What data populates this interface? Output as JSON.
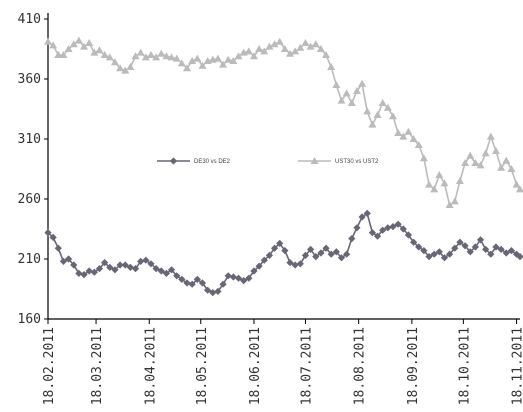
{
  "chart_data": {
    "type": "line",
    "title": "",
    "xlabel": "",
    "ylabel": "",
    "ylim": [
      160,
      410
    ],
    "y_ticks": [
      "160",
      "210",
      "260",
      "310",
      "360",
      "410"
    ],
    "x_ticks": [
      "18.02.2011",
      "18.03.2011",
      "18.04.2011",
      "18.05.2011",
      "18.06.2011",
      "18.07.2011",
      "18.08.2011",
      "18.09.2011",
      "18.10.2011",
      "18.11.2011"
    ],
    "x_range": [
      "2011-02-18",
      "2011-11-20"
    ],
    "grid": false,
    "legend_position": "center",
    "series": [
      {
        "name": "DE30 vs DE2",
        "color": "#666677",
        "marker": "diamond",
        "points": [
          [
            "2011-02-18",
            232
          ],
          [
            "2011-02-21",
            228
          ],
          [
            "2011-02-24",
            219
          ],
          [
            "2011-02-27",
            208
          ],
          [
            "2011-03-02",
            210
          ],
          [
            "2011-03-05",
            205
          ],
          [
            "2011-03-08",
            198
          ],
          [
            "2011-03-11",
            197
          ],
          [
            "2011-03-14",
            200
          ],
          [
            "2011-03-17",
            199
          ],
          [
            "2011-03-20",
            202
          ],
          [
            "2011-03-23",
            207
          ],
          [
            "2011-03-26",
            203
          ],
          [
            "2011-03-29",
            201
          ],
          [
            "2011-04-01",
            205
          ],
          [
            "2011-04-04",
            205
          ],
          [
            "2011-04-07",
            203
          ],
          [
            "2011-04-10",
            202
          ],
          [
            "2011-04-13",
            208
          ],
          [
            "2011-04-16",
            209
          ],
          [
            "2011-04-19",
            206
          ],
          [
            "2011-04-22",
            202
          ],
          [
            "2011-04-25",
            200
          ],
          [
            "2011-04-28",
            198
          ],
          [
            "2011-05-01",
            201
          ],
          [
            "2011-05-04",
            196
          ],
          [
            "2011-05-07",
            193
          ],
          [
            "2011-05-10",
            190
          ],
          [
            "2011-05-13",
            189
          ],
          [
            "2011-05-16",
            193
          ],
          [
            "2011-05-19",
            190
          ],
          [
            "2011-05-22",
            184
          ],
          [
            "2011-05-25",
            182
          ],
          [
            "2011-05-28",
            183
          ],
          [
            "2011-05-31",
            189
          ],
          [
            "2011-06-03",
            196
          ],
          [
            "2011-06-06",
            195
          ],
          [
            "2011-06-09",
            194
          ],
          [
            "2011-06-12",
            192
          ],
          [
            "2011-06-15",
            194
          ],
          [
            "2011-06-18",
            200
          ],
          [
            "2011-06-21",
            204
          ],
          [
            "2011-06-24",
            209
          ],
          [
            "2011-06-27",
            213
          ],
          [
            "2011-06-30",
            219
          ],
          [
            "2011-07-03",
            223
          ],
          [
            "2011-07-06",
            217
          ],
          [
            "2011-07-09",
            207
          ],
          [
            "2011-07-12",
            205
          ],
          [
            "2011-07-15",
            206
          ],
          [
            "2011-07-18",
            213
          ],
          [
            "2011-07-21",
            218
          ],
          [
            "2011-07-24",
            212
          ],
          [
            "2011-07-27",
            215
          ],
          [
            "2011-07-30",
            219
          ],
          [
            "2011-08-02",
            214
          ],
          [
            "2011-08-05",
            216
          ],
          [
            "2011-08-08",
            211
          ],
          [
            "2011-08-11",
            214
          ],
          [
            "2011-08-14",
            227
          ],
          [
            "2011-08-17",
            236
          ],
          [
            "2011-08-20",
            245
          ],
          [
            "2011-08-23",
            248
          ],
          [
            "2011-08-26",
            232
          ],
          [
            "2011-08-29",
            229
          ],
          [
            "2011-09-01",
            234
          ],
          [
            "2011-09-04",
            236
          ],
          [
            "2011-09-07",
            237
          ],
          [
            "2011-09-10",
            239
          ],
          [
            "2011-09-13",
            235
          ],
          [
            "2011-09-16",
            230
          ],
          [
            "2011-09-19",
            224
          ],
          [
            "2011-09-22",
            220
          ],
          [
            "2011-09-25",
            217
          ],
          [
            "2011-09-28",
            212
          ],
          [
            "2011-10-01",
            214
          ],
          [
            "2011-10-04",
            216
          ],
          [
            "2011-10-07",
            211
          ],
          [
            "2011-10-10",
            214
          ],
          [
            "2011-10-13",
            219
          ],
          [
            "2011-10-16",
            224
          ],
          [
            "2011-10-19",
            221
          ],
          [
            "2011-10-22",
            216
          ],
          [
            "2011-10-25",
            220
          ],
          [
            "2011-10-28",
            226
          ],
          [
            "2011-10-31",
            218
          ],
          [
            "2011-11-03",
            214
          ],
          [
            "2011-11-06",
            220
          ],
          [
            "2011-11-09",
            218
          ],
          [
            "2011-11-12",
            215
          ],
          [
            "2011-11-15",
            217
          ],
          [
            "2011-11-18",
            214
          ],
          [
            "2011-11-20",
            212
          ]
        ]
      },
      {
        "name": "UST30 vs UST2",
        "color": "#bbbbbb",
        "marker": "triangle",
        "points": [
          [
            "2011-02-18",
            391
          ],
          [
            "2011-02-21",
            388
          ],
          [
            "2011-02-24",
            380
          ],
          [
            "2011-02-27",
            380
          ],
          [
            "2011-03-02",
            385
          ],
          [
            "2011-03-05",
            389
          ],
          [
            "2011-03-08",
            392
          ],
          [
            "2011-03-11",
            387
          ],
          [
            "2011-03-14",
            390
          ],
          [
            "2011-03-17",
            382
          ],
          [
            "2011-03-20",
            384
          ],
          [
            "2011-03-23",
            380
          ],
          [
            "2011-03-26",
            378
          ],
          [
            "2011-03-29",
            374
          ],
          [
            "2011-04-01",
            369
          ],
          [
            "2011-04-04",
            367
          ],
          [
            "2011-04-07",
            370
          ],
          [
            "2011-04-10",
            379
          ],
          [
            "2011-04-13",
            382
          ],
          [
            "2011-04-16",
            378
          ],
          [
            "2011-04-19",
            380
          ],
          [
            "2011-04-22",
            378
          ],
          [
            "2011-04-25",
            381
          ],
          [
            "2011-04-28",
            379
          ],
          [
            "2011-05-01",
            378
          ],
          [
            "2011-05-04",
            377
          ],
          [
            "2011-05-07",
            373
          ],
          [
            "2011-05-10",
            369
          ],
          [
            "2011-05-13",
            375
          ],
          [
            "2011-05-16",
            377
          ],
          [
            "2011-05-19",
            371
          ],
          [
            "2011-05-22",
            375
          ],
          [
            "2011-05-25",
            376
          ],
          [
            "2011-05-28",
            377
          ],
          [
            "2011-05-31",
            372
          ],
          [
            "2011-06-03",
            376
          ],
          [
            "2011-06-06",
            375
          ],
          [
            "2011-06-09",
            379
          ],
          [
            "2011-06-12",
            382
          ],
          [
            "2011-06-15",
            383
          ],
          [
            "2011-06-18",
            379
          ],
          [
            "2011-06-21",
            385
          ],
          [
            "2011-06-24",
            383
          ],
          [
            "2011-06-27",
            387
          ],
          [
            "2011-06-30",
            389
          ],
          [
            "2011-07-03",
            391
          ],
          [
            "2011-07-06",
            385
          ],
          [
            "2011-07-09",
            381
          ],
          [
            "2011-07-12",
            383
          ],
          [
            "2011-07-15",
            386
          ],
          [
            "2011-07-18",
            390
          ],
          [
            "2011-07-21",
            387
          ],
          [
            "2011-07-24",
            389
          ],
          [
            "2011-07-27",
            385
          ],
          [
            "2011-07-30",
            380
          ],
          [
            "2011-08-02",
            370
          ],
          [
            "2011-08-05",
            355
          ],
          [
            "2011-08-08",
            342
          ],
          [
            "2011-08-11",
            348
          ],
          [
            "2011-08-14",
            340
          ],
          [
            "2011-08-17",
            350
          ],
          [
            "2011-08-20",
            356
          ],
          [
            "2011-08-23",
            333
          ],
          [
            "2011-08-26",
            322
          ],
          [
            "2011-08-29",
            330
          ],
          [
            "2011-09-01",
            340
          ],
          [
            "2011-09-04",
            336
          ],
          [
            "2011-09-07",
            329
          ],
          [
            "2011-09-10",
            315
          ],
          [
            "2011-09-13",
            312
          ],
          [
            "2011-09-16",
            316
          ],
          [
            "2011-09-19",
            310
          ],
          [
            "2011-09-22",
            305
          ],
          [
            "2011-09-25",
            294
          ],
          [
            "2011-09-28",
            272
          ],
          [
            "2011-10-01",
            268
          ],
          [
            "2011-10-04",
            280
          ],
          [
            "2011-10-07",
            273
          ],
          [
            "2011-10-10",
            255
          ],
          [
            "2011-10-13",
            258
          ],
          [
            "2011-10-16",
            275
          ],
          [
            "2011-10-19",
            290
          ],
          [
            "2011-10-22",
            296
          ],
          [
            "2011-10-25",
            290
          ],
          [
            "2011-10-28",
            288
          ],
          [
            "2011-10-31",
            298
          ],
          [
            "2011-11-03",
            312
          ],
          [
            "2011-11-06",
            300
          ],
          [
            "2011-11-09",
            286
          ],
          [
            "2011-11-12",
            292
          ],
          [
            "2011-11-15",
            285
          ],
          [
            "2011-11-18",
            272
          ],
          [
            "2011-11-20",
            268
          ]
        ]
      }
    ]
  }
}
